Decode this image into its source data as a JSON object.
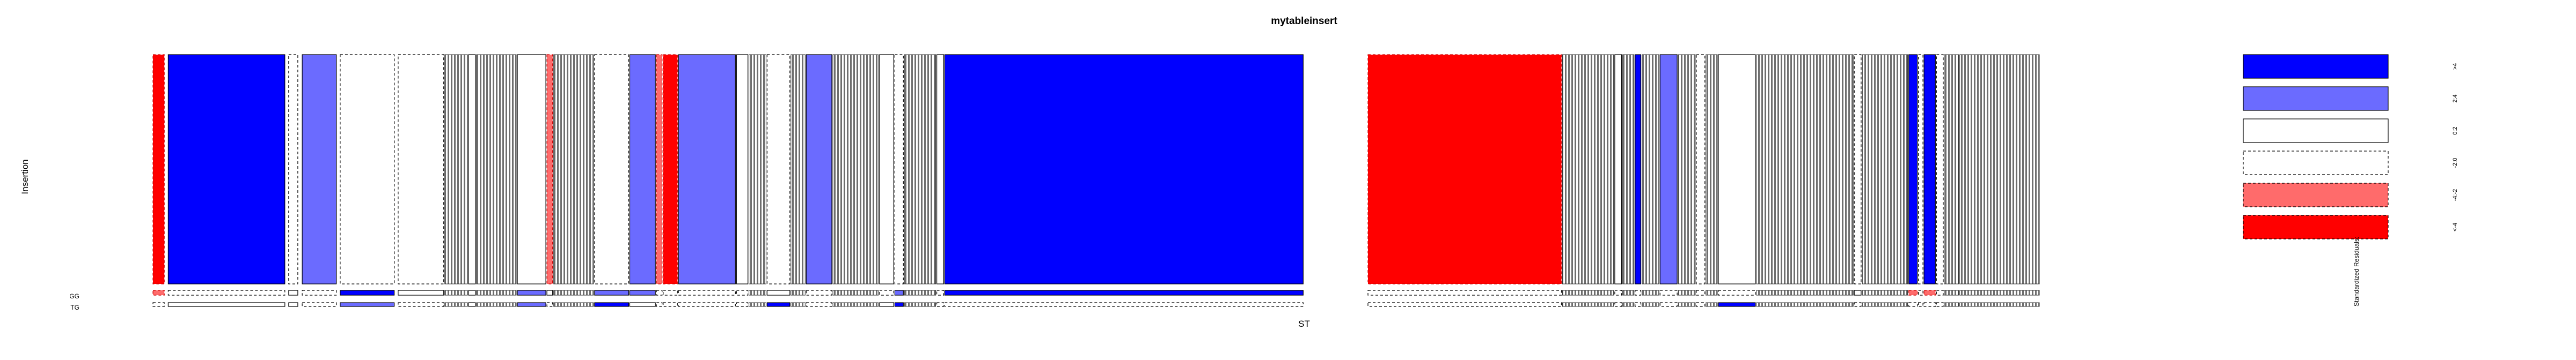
{
  "chart_data": {
    "type": "mosaic",
    "title": "mytableinsert",
    "xlabel": "ST",
    "ylabel": "Insertion",
    "y_categories": [
      "",
      "GG",
      "TG"
    ],
    "legend": {
      "title": "Standardized Residuals:",
      "entries": [
        {
          "label": ">4",
          "fill": "#0000ff",
          "border": "solid"
        },
        {
          "label": "2:4",
          "fill": "#6b6bff",
          "border": "solid"
        },
        {
          "label": "0:2",
          "fill": "#ffffff",
          "border": "solid"
        },
        {
          "label": "-2:0",
          "fill": "#ffffff",
          "border": "dashed"
        },
        {
          "label": "-4:-2",
          "fill": "#ff6b6b",
          "border": "dashed"
        },
        {
          "label": "<-4",
          "fill": "#ff0000",
          "border": "dashed"
        }
      ]
    },
    "columns": [
      {
        "w": 2.0,
        "res": [
          "n4",
          "n2",
          "n0"
        ]
      },
      {
        "w": 0.3,
        "res": [
          "0",
          "0",
          "0"
        ]
      },
      {
        "w": 20.5,
        "res": [
          "p4",
          "n0",
          "p0"
        ]
      },
      {
        "w": 0.3,
        "res": [
          "0",
          "0",
          "0"
        ]
      },
      {
        "w": 1.6,
        "res": [
          "n0",
          "p0",
          "p0"
        ]
      },
      {
        "w": 0.4,
        "res": [
          "0",
          "0",
          "0"
        ]
      },
      {
        "w": 6.0,
        "res": [
          "p2",
          "n0",
          "n0"
        ]
      },
      {
        "w": 0.3,
        "res": [
          "0",
          "0",
          "0"
        ]
      },
      {
        "w": 9.5,
        "res": [
          "n0",
          "p4",
          "p2"
        ]
      },
      {
        "w": 0.3,
        "res": [
          "0",
          "0",
          "0"
        ]
      },
      {
        "w": 8.0,
        "res": [
          "n0",
          "p0",
          "n0"
        ]
      },
      {
        "w": 4.0,
        "res": [
          "stripes",
          "stripes",
          "stripes"
        ]
      },
      {
        "w": 1.2,
        "res": [
          "p0",
          "p0",
          "p0"
        ]
      },
      {
        "w": 7.0,
        "res": [
          "stripes",
          "stripes",
          "stripes"
        ]
      },
      {
        "w": 5.0,
        "res": [
          "p0",
          "p2",
          "p2"
        ]
      },
      {
        "w": 1.0,
        "res": [
          "n2",
          "p0",
          "n0"
        ]
      },
      {
        "w": 7.0,
        "res": [
          "stripes",
          "stripes",
          "stripes"
        ]
      },
      {
        "w": 6.0,
        "res": [
          "n0",
          "p2",
          "p4"
        ]
      },
      {
        "w": 4.5,
        "res": [
          "p2",
          "p2",
          "p0"
        ]
      },
      {
        "w": 1.0,
        "res": [
          "n2",
          "n0",
          "n0"
        ]
      },
      {
        "w": 2.5,
        "res": [
          "n4",
          "n0",
          "n0"
        ]
      },
      {
        "w": 10.0,
        "res": [
          "p2",
          "n0",
          "n0"
        ]
      },
      {
        "w": 2.0,
        "res": [
          "p0",
          "n0",
          "n0"
        ]
      },
      {
        "w": 3.0,
        "res": [
          "stripes",
          "stripes",
          "stripes"
        ]
      },
      {
        "w": 4.0,
        "res": [
          "n0",
          "p0",
          "p4"
        ]
      },
      {
        "w": 2.5,
        "res": [
          "stripes",
          "stripes",
          "stripes"
        ]
      },
      {
        "w": 4.5,
        "res": [
          "p2",
          "n0",
          "n0"
        ]
      },
      {
        "w": 8.0,
        "res": [
          "stripes",
          "stripes",
          "stripes"
        ]
      },
      {
        "w": 2.5,
        "res": [
          "p0",
          "n0",
          "p0"
        ]
      },
      {
        "w": 1.5,
        "res": [
          "n0",
          "p2",
          "p4"
        ]
      },
      {
        "w": 5.5,
        "res": [
          "stripes",
          "stripes",
          "stripes"
        ]
      },
      {
        "w": 1.2,
        "res": [
          "p0",
          "n0",
          "n0"
        ]
      },
      {
        "w": 63.0,
        "res": [
          "p4",
          "p4",
          "n0"
        ]
      },
      {
        "w": 11.0,
        "res": [
          "0",
          "0",
          "0"
        ]
      },
      {
        "w": 34.0,
        "res": [
          "n4",
          "n0",
          "n0"
        ]
      },
      {
        "w": 9.0,
        "res": [
          "stripes",
          "stripes",
          "stripes"
        ]
      },
      {
        "w": 1.2,
        "res": [
          "p0",
          "n0",
          "n0"
        ]
      },
      {
        "w": 2.0,
        "res": [
          "stripes",
          "stripes",
          "stripes"
        ]
      },
      {
        "w": 1.0,
        "res": [
          "p4",
          "n0",
          "n0"
        ]
      },
      {
        "w": 3.0,
        "res": [
          "stripes",
          "stripes",
          "stripes"
        ]
      },
      {
        "w": 3.0,
        "res": [
          "p2",
          "n0",
          "n0"
        ]
      },
      {
        "w": 3.0,
        "res": [
          "stripes",
          "stripes",
          "stripes"
        ]
      },
      {
        "w": 1.5,
        "res": [
          "n0",
          "n0",
          "n0"
        ]
      },
      {
        "w": 2.0,
        "res": [
          "stripes",
          "stripes",
          "stripes"
        ]
      },
      {
        "w": 6.5,
        "res": [
          "p0",
          "n0",
          "p4"
        ]
      },
      {
        "w": 17.0,
        "res": [
          "stripes",
          "stripes",
          "stripes"
        ]
      },
      {
        "w": 1.2,
        "res": [
          "n0",
          "p0",
          "n0"
        ]
      },
      {
        "w": 8.0,
        "res": [
          "stripes",
          "stripes",
          "stripes"
        ]
      },
      {
        "w": 1.5,
        "res": [
          "p4",
          "n2",
          "n0"
        ]
      },
      {
        "w": 0.8,
        "res": [
          "n0",
          "n0",
          "n0"
        ]
      },
      {
        "w": 2.0,
        "res": [
          "p4",
          "n2",
          "n0"
        ]
      },
      {
        "w": 1.2,
        "res": [
          "n0",
          "n0",
          "n0"
        ]
      },
      {
        "w": 2.5,
        "res": [
          "stripes",
          "stripes",
          "stripes"
        ]
      },
      {
        "w": 14.0,
        "res": [
          "stripes",
          "stripes",
          "stripes"
        ]
      }
    ]
  }
}
